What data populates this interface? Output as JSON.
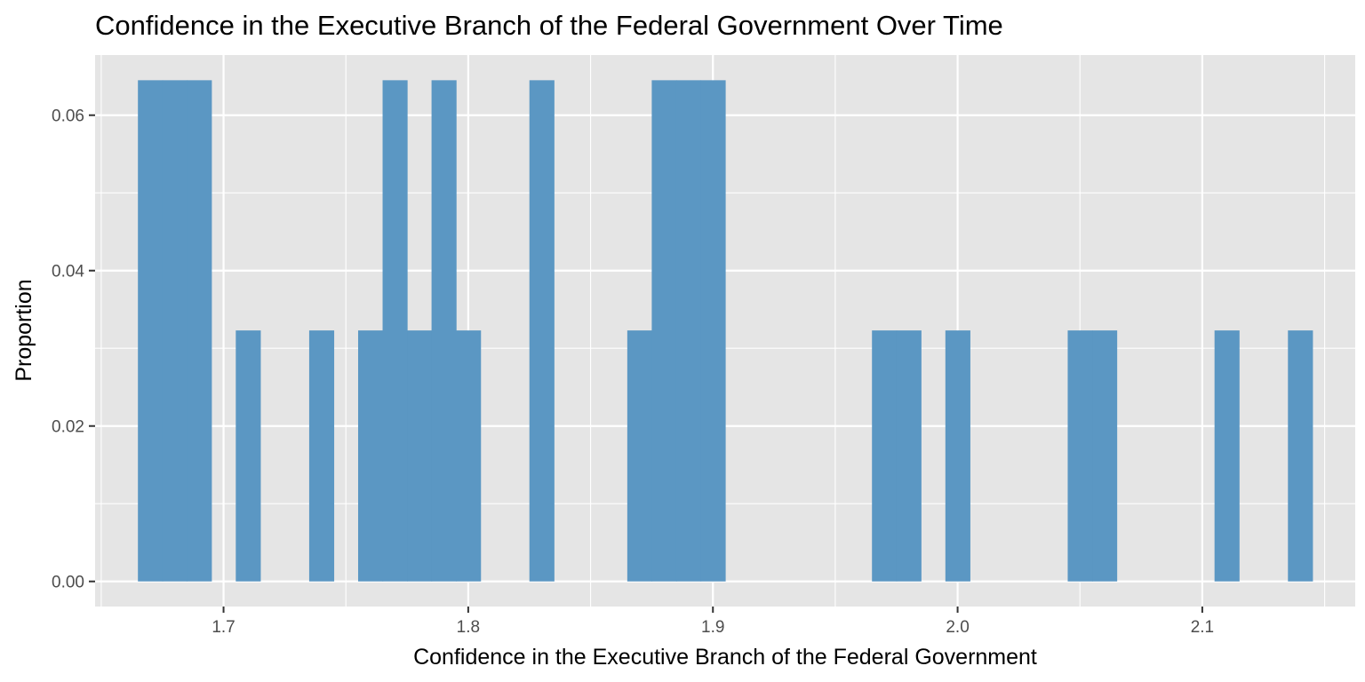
{
  "chart_data": {
    "type": "bar",
    "title": "Confidence in the Executive Branch of the Federal Government Over Time",
    "xlabel": "Confidence in the Executive Branch of the Federal Government",
    "ylabel": "Proportion",
    "xlim": [
      1.6475,
      2.1625
    ],
    "ylim": [
      -0.00323,
      0.06774
    ],
    "x_ticks": [
      1.7,
      1.8,
      1.9,
      2.0,
      2.1
    ],
    "x_tick_labels": [
      "1.7",
      "1.8",
      "1.9",
      "2.0",
      "2.1"
    ],
    "y_ticks": [
      0.0,
      0.02,
      0.04,
      0.06
    ],
    "y_tick_labels": [
      "0.00",
      "0.02",
      "0.04",
      "0.06"
    ],
    "grid": true,
    "bin_width": 0.01,
    "bins": [
      {
        "x": 1.67,
        "value": 0.0645
      },
      {
        "x": 1.68,
        "value": 0.0645
      },
      {
        "x": 1.69,
        "value": 0.0645
      },
      {
        "x": 1.71,
        "value": 0.0323
      },
      {
        "x": 1.74,
        "value": 0.0323
      },
      {
        "x": 1.76,
        "value": 0.0323
      },
      {
        "x": 1.77,
        "value": 0.0645
      },
      {
        "x": 1.78,
        "value": 0.0323
      },
      {
        "x": 1.79,
        "value": 0.0645
      },
      {
        "x": 1.8,
        "value": 0.0323
      },
      {
        "x": 1.83,
        "value": 0.0645
      },
      {
        "x": 1.87,
        "value": 0.0323
      },
      {
        "x": 1.88,
        "value": 0.0645
      },
      {
        "x": 1.89,
        "value": 0.0645
      },
      {
        "x": 1.9,
        "value": 0.0645
      },
      {
        "x": 1.97,
        "value": 0.0323
      },
      {
        "x": 1.98,
        "value": 0.0323
      },
      {
        "x": 2.0,
        "value": 0.0323
      },
      {
        "x": 2.05,
        "value": 0.0323
      },
      {
        "x": 2.06,
        "value": 0.0323
      },
      {
        "x": 2.11,
        "value": 0.0323
      },
      {
        "x": 2.14,
        "value": 0.0323
      }
    ],
    "colors": {
      "bar": "#5b97c3",
      "panel": "#e5e5e5",
      "grid": "#ffffff",
      "tick_text": "#4d4d4d",
      "tick_mark": "#333333"
    }
  }
}
